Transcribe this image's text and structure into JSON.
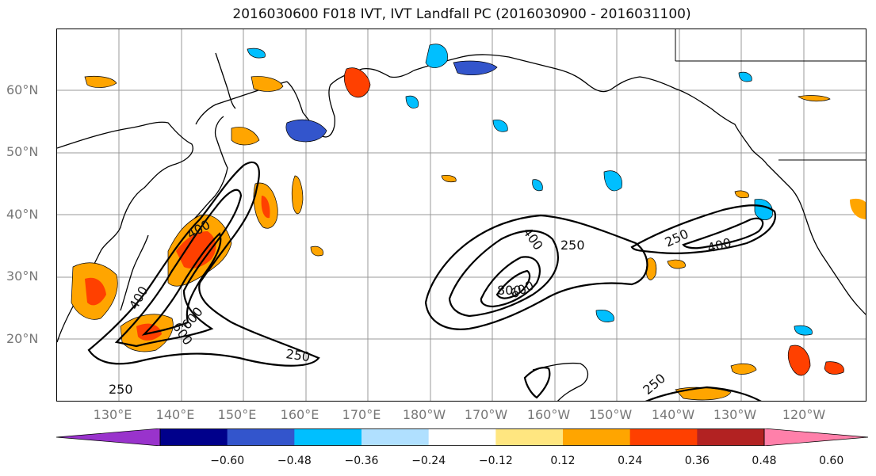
{
  "title": "2016030600 F018 IVT, IVT Landfall PC (2016030900 - 2016031100)",
  "lat_labels": [
    "60°N",
    "50°N",
    "40°N",
    "30°N",
    "20°N"
  ],
  "lon_labels": [
    "130°E",
    "140°E",
    "150°E",
    "160°E",
    "170°E",
    "180°W",
    "170°W",
    "160°W",
    "150°W",
    "140°W",
    "130°W",
    "120°W"
  ],
  "colorbar": {
    "colors": [
      "#9933cc",
      "#00008b",
      "#3355cc",
      "#00bfff",
      "#b0e0ff",
      "#ffffff",
      "#ffe680",
      "#ffa500",
      "#ff4000",
      "#b22222",
      "#ff80aa"
    ],
    "ticks": [
      "−0.60",
      "−0.48",
      "−0.36",
      "−0.24",
      "−0.12",
      "0.12",
      "0.24",
      "0.36",
      "0.48",
      "0.60"
    ]
  },
  "contour_labels": [
    "400",
    "400",
    "250",
    "600",
    "600",
    "250",
    "250",
    "400",
    "250",
    "800",
    "600",
    "250",
    "400",
    "250"
  ],
  "colors": {
    "grid": "#999999",
    "coast": "#000000",
    "contour": "#000000"
  }
}
